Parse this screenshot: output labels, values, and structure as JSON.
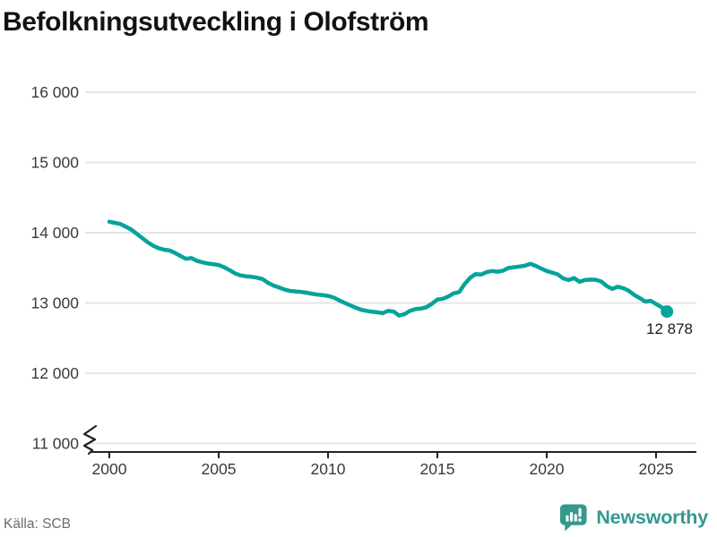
{
  "header": {
    "title": "Befolkningsutveckling i Olofström"
  },
  "footer": {
    "source_label": "Källa: SCB",
    "brand": {
      "name": "Newsworthy",
      "color": "#33998c",
      "icon": "bar-chart-speech-bubble-icon"
    }
  },
  "chart_data": {
    "type": "line",
    "title": "Befolkningsutveckling i Olofström",
    "xlabel": "",
    "ylabel": "",
    "grid": true,
    "legend": "none",
    "axis_break_at_bottom": true,
    "line_color": "#06a39a",
    "grid_color": "#e5e5e5",
    "axis_color": "#222222",
    "xlim": [
      1999.1,
      2026.9
    ],
    "ylim": [
      11000,
      16300
    ],
    "x_ticks": [
      2000,
      2005,
      2010,
      2015,
      2020,
      2025
    ],
    "x_tick_labels": [
      "2000",
      "2005",
      "2010",
      "2015",
      "2020",
      "2025"
    ],
    "y_ticks": [
      11000,
      12000,
      13000,
      14000,
      15000,
      16000
    ],
    "y_tick_labels": [
      "11 000",
      "12 000",
      "13 000",
      "14 000",
      "15 000",
      "16 000"
    ],
    "last_point": {
      "x": 2025.5,
      "value": 12878,
      "label": "12 878"
    },
    "x": [
      2000.0,
      2000.25,
      2000.5,
      2000.75,
      2001.0,
      2001.25,
      2001.5,
      2001.75,
      2002.0,
      2002.25,
      2002.5,
      2002.75,
      2003.0,
      2003.25,
      2003.5,
      2003.75,
      2004.0,
      2004.25,
      2004.5,
      2004.75,
      2005.0,
      2005.25,
      2005.5,
      2005.75,
      2006.0,
      2006.25,
      2006.5,
      2006.75,
      2007.0,
      2007.25,
      2007.5,
      2007.75,
      2008.0,
      2008.25,
      2008.5,
      2008.75,
      2009.0,
      2009.25,
      2009.5,
      2009.75,
      2010.0,
      2010.25,
      2010.5,
      2010.75,
      2011.0,
      2011.25,
      2011.5,
      2011.75,
      2012.0,
      2012.25,
      2012.5,
      2012.75,
      2013.0,
      2013.25,
      2013.5,
      2013.75,
      2014.0,
      2014.25,
      2014.5,
      2014.75,
      2015.0,
      2015.25,
      2015.5,
      2015.75,
      2016.0,
      2016.25,
      2016.5,
      2016.75,
      2017.0,
      2017.25,
      2017.5,
      2017.75,
      2018.0,
      2018.25,
      2018.5,
      2018.75,
      2019.0,
      2019.25,
      2019.5,
      2019.75,
      2020.0,
      2020.25,
      2020.5,
      2020.75,
      2021.0,
      2021.25,
      2021.5,
      2021.75,
      2022.0,
      2022.25,
      2022.5,
      2022.75,
      2023.0,
      2023.25,
      2023.5,
      2023.75,
      2024.0,
      2024.25,
      2024.5,
      2024.75,
      2025.0,
      2025.25,
      2025.5
    ],
    "values": [
      14155,
      14140,
      14125,
      14085,
      14045,
      13985,
      13925,
      13865,
      13815,
      13780,
      13758,
      13748,
      13712,
      13670,
      13628,
      13640,
      13600,
      13578,
      13562,
      13552,
      13540,
      13508,
      13468,
      13420,
      13392,
      13380,
      13372,
      13360,
      13340,
      13288,
      13248,
      13222,
      13192,
      13172,
      13164,
      13158,
      13146,
      13132,
      13120,
      13112,
      13100,
      13078,
      13040,
      13002,
      12968,
      12935,
      12905,
      12888,
      12875,
      12868,
      12855,
      12888,
      12878,
      12820,
      12842,
      12888,
      12912,
      12920,
      12940,
      12988,
      13048,
      13060,
      13092,
      13138,
      13155,
      13270,
      13358,
      13410,
      13404,
      13438,
      13455,
      13444,
      13460,
      13498,
      13508,
      13518,
      13530,
      13558,
      13528,
      13490,
      13455,
      13432,
      13408,
      13350,
      13326,
      13356,
      13300,
      13326,
      13332,
      13330,
      13304,
      13240,
      13200,
      13230,
      13210,
      13175,
      13115,
      13070,
      13020,
      13030,
      12985,
      12940,
      12878
    ]
  }
}
